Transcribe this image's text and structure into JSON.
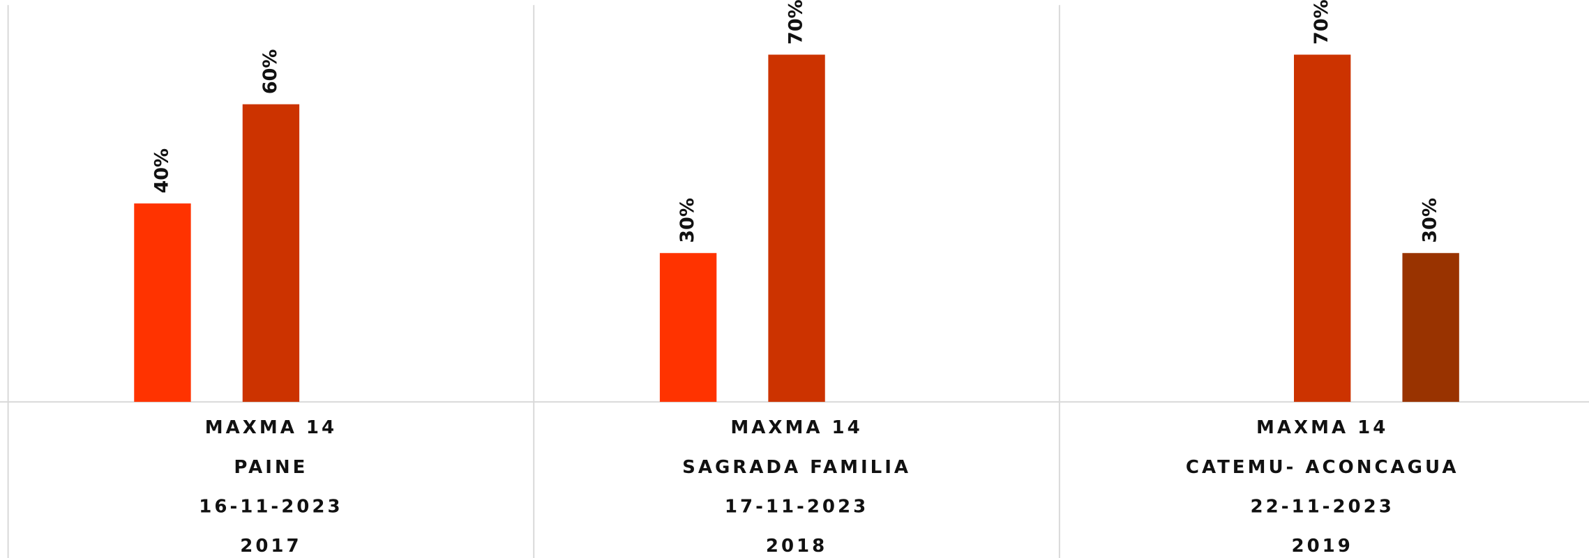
{
  "chart_data": {
    "type": "bar",
    "categories": [
      [
        "MAXMA 14",
        "PAINE",
        "16-11-2023",
        "2017"
      ],
      [
        "MAXMA 14",
        "SAGRADA FAMILIA",
        "17-11-2023",
        "2018"
      ],
      [
        "MAXMA 14",
        "CATEMU- ACONCAGUA",
        "22-11-2023",
        "2019"
      ]
    ],
    "series": [
      {
        "color": "#ff3300",
        "values": [
          40,
          30,
          null
        ],
        "value_labels": [
          "40%",
          "30%",
          null
        ]
      },
      {
        "color": "#cc3300",
        "values": [
          60,
          70,
          70
        ],
        "value_labels": [
          "60%",
          "70%",
          "70%"
        ]
      },
      {
        "color": "#993300",
        "values": [
          null,
          null,
          30
        ],
        "value_labels": [
          null,
          null,
          "30%"
        ]
      }
    ],
    "ylim": [
      0,
      80
    ]
  }
}
